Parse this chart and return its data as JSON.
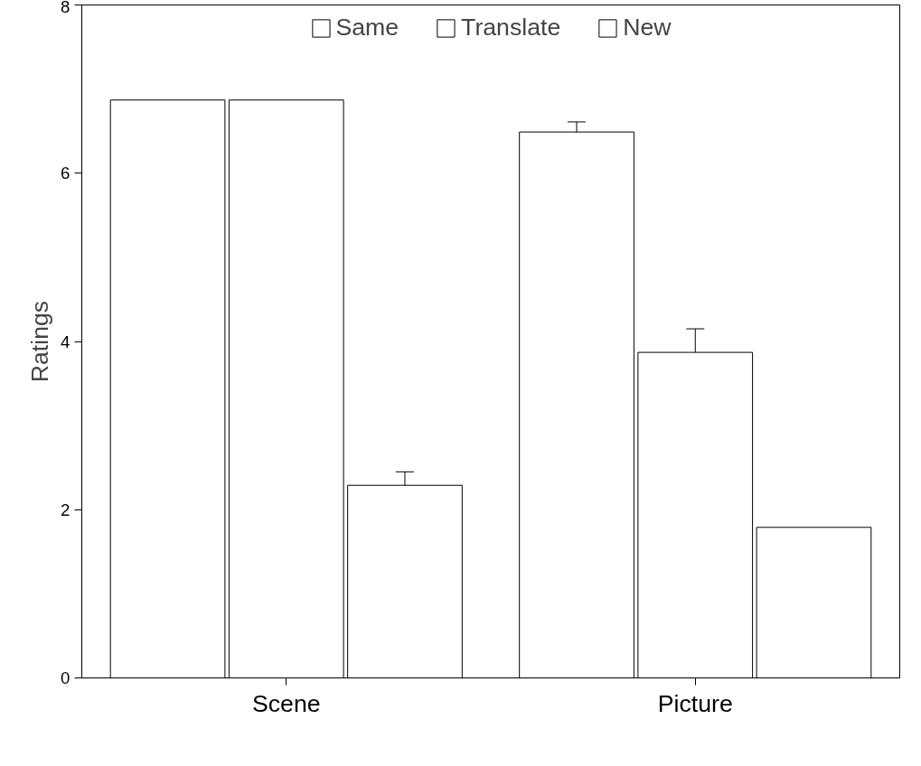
{
  "chart_data": {
    "type": "bar",
    "ylabel": "Ratings",
    "categories": [
      "Scene",
      "Picture"
    ],
    "series": [
      {
        "name": "Same",
        "color": "#ffffff",
        "values": [
          6.87,
          6.49
        ],
        "errors": [
          null,
          0.12
        ]
      },
      {
        "name": "Translate",
        "color": "#ffffff",
        "values": [
          6.87,
          3.87
        ],
        "errors": [
          null,
          0.28
        ]
      },
      {
        "name": "New",
        "color": "#ffffff",
        "values": [
          2.29,
          1.79
        ],
        "errors": [
          0.16,
          null
        ]
      }
    ],
    "ylim": [
      0,
      8
    ],
    "yticks": [
      0,
      2,
      4,
      6,
      8
    ],
    "grid": false,
    "legend": "top"
  }
}
